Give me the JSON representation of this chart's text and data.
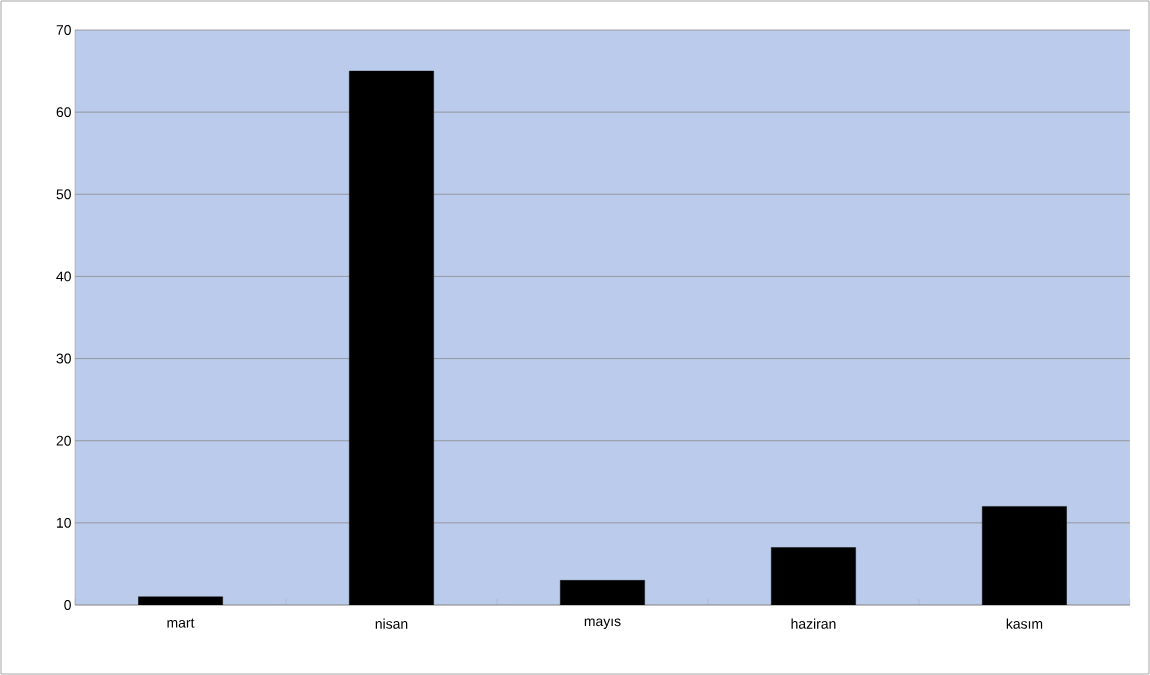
{
  "chart_data": {
    "type": "bar",
    "categories": [
      "mart",
      "nisan",
      "mayıs",
      "haziran",
      "kasım"
    ],
    "values": [
      1,
      65,
      3,
      7,
      12
    ],
    "color": "#000000",
    "ylim": [
      0,
      70
    ],
    "yticks": [
      0,
      10,
      20,
      30,
      40,
      50,
      60,
      70
    ],
    "grid": "y"
  }
}
